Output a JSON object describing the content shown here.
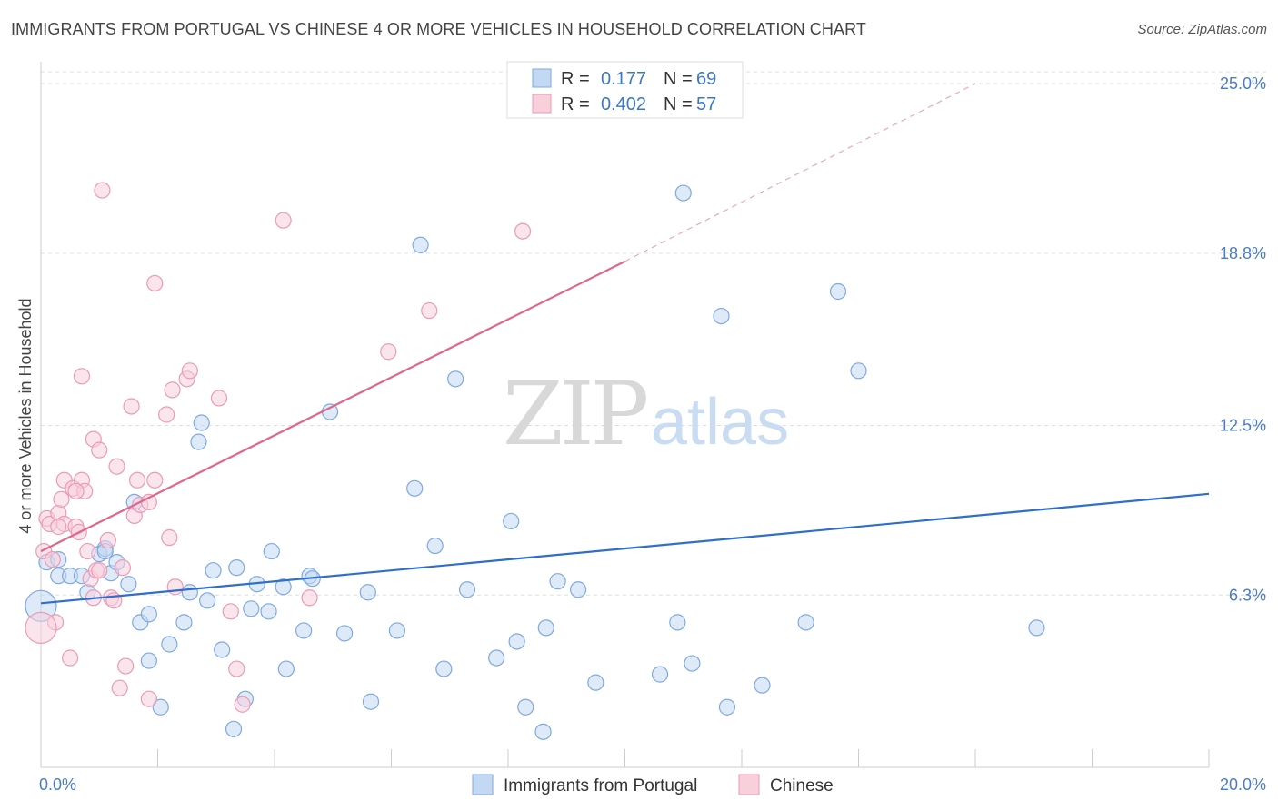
{
  "header": {
    "title": "IMMIGRANTS FROM PORTUGAL VS CHINESE 4 OR MORE VEHICLES IN HOUSEHOLD CORRELATION CHART",
    "source": "Source: ZipAtlas.com"
  },
  "watermark": {
    "zip": "ZIP",
    "atlas": "atlas"
  },
  "legend": {
    "r_label": "R =",
    "n_label": "N =",
    "rows": [
      {
        "r": "0.177",
        "n": "69",
        "color": "#a9c8ee"
      },
      {
        "r": "0.402",
        "n": "57",
        "color": "#f4b8cb"
      }
    ]
  },
  "chart_data": {
    "type": "scatter",
    "xlabel": "",
    "ylabel": "4 or more Vehicles in Household",
    "xlim": [
      0,
      20
    ],
    "ylim": [
      0,
      25.8
    ],
    "x_tick_labels": [
      "0.0%",
      "20.0%"
    ],
    "y_ticks": [
      6.3,
      12.5,
      18.8,
      25.0
    ],
    "y_tick_labels": [
      "6.3%",
      "12.5%",
      "18.8%",
      "25.0%"
    ],
    "grid": true,
    "legend_position": "bottom",
    "series": [
      {
        "name": "Immigrants from Portugal",
        "color": "#7fa9e0",
        "fill": "#c3d8f3",
        "trend": {
          "x": [
            0,
            20
          ],
          "y": [
            6.0,
            10.0
          ],
          "color": "#2f6fcc"
        },
        "points": [
          [
            0.1,
            7.5
          ],
          [
            0.3,
            7.6
          ],
          [
            0.3,
            7.0
          ],
          [
            0.5,
            7.0
          ],
          [
            0.7,
            7.0
          ],
          [
            0.8,
            6.4
          ],
          [
            1.0,
            7.8
          ],
          [
            1.1,
            8.0
          ],
          [
            1.2,
            7.1
          ],
          [
            1.3,
            7.5
          ],
          [
            1.5,
            6.7
          ],
          [
            1.6,
            9.7
          ],
          [
            1.7,
            5.3
          ],
          [
            1.85,
            5.6
          ],
          [
            1.85,
            3.9
          ],
          [
            2.05,
            2.2
          ],
          [
            2.2,
            4.5
          ],
          [
            2.45,
            5.3
          ],
          [
            2.55,
            6.4
          ],
          [
            2.7,
            11.9
          ],
          [
            2.75,
            12.6
          ],
          [
            2.85,
            6.1
          ],
          [
            2.95,
            7.2
          ],
          [
            3.1,
            4.3
          ],
          [
            3.3,
            1.4
          ],
          [
            3.35,
            7.3
          ],
          [
            3.5,
            2.5
          ],
          [
            3.6,
            5.8
          ],
          [
            3.7,
            6.7
          ],
          [
            3.9,
            5.7
          ],
          [
            3.95,
            7.9
          ],
          [
            4.15,
            6.6
          ],
          [
            4.2,
            3.6
          ],
          [
            4.5,
            5.0
          ],
          [
            4.6,
            7.0
          ],
          [
            4.65,
            6.9
          ],
          [
            4.95,
            13.0
          ],
          [
            5.2,
            4.9
          ],
          [
            5.6,
            6.4
          ],
          [
            5.65,
            2.4
          ],
          [
            6.1,
            5.0
          ],
          [
            6.4,
            10.2
          ],
          [
            6.5,
            19.1
          ],
          [
            6.75,
            8.1
          ],
          [
            6.9,
            3.6
          ],
          [
            7.1,
            14.2
          ],
          [
            7.3,
            6.5
          ],
          [
            7.8,
            4.0
          ],
          [
            8.05,
            9.0
          ],
          [
            8.15,
            4.6
          ],
          [
            8.3,
            2.2
          ],
          [
            8.6,
            1.3
          ],
          [
            8.65,
            5.1
          ],
          [
            8.85,
            6.8
          ],
          [
            9.2,
            6.5
          ],
          [
            9.5,
            3.1
          ],
          [
            10.6,
            3.4
          ],
          [
            10.9,
            5.3
          ],
          [
            11.0,
            21.0
          ],
          [
            11.15,
            3.8
          ],
          [
            11.65,
            16.5
          ],
          [
            11.75,
            2.2
          ],
          [
            12.35,
            3.0
          ],
          [
            13.1,
            5.3
          ],
          [
            13.65,
            17.4
          ],
          [
            14.0,
            14.5
          ],
          [
            17.05,
            5.1
          ],
          [
            0.0,
            5.9
          ],
          [
            1.1,
            7.9
          ]
        ]
      },
      {
        "name": "Chinese",
        "color": "#ec9ab5",
        "fill": "#f8d0dc",
        "trend": {
          "x": [
            0,
            10
          ],
          "y": [
            7.9,
            18.5
          ],
          "color": "#e0668e",
          "dash_to": [
            16,
            25.0
          ]
        },
        "points": [
          [
            0.05,
            7.9
          ],
          [
            0.1,
            9.1
          ],
          [
            0.15,
            8.9
          ],
          [
            0.2,
            7.6
          ],
          [
            0.25,
            5.3
          ],
          [
            0.3,
            9.3
          ],
          [
            0.35,
            9.8
          ],
          [
            0.4,
            8.9
          ],
          [
            0.4,
            10.5
          ],
          [
            0.5,
            4.0
          ],
          [
            0.55,
            10.2
          ],
          [
            0.6,
            8.8
          ],
          [
            0.65,
            8.6
          ],
          [
            0.7,
            10.5
          ],
          [
            0.7,
            14.3
          ],
          [
            0.75,
            10.1
          ],
          [
            0.8,
            7.9
          ],
          [
            0.85,
            6.9
          ],
          [
            0.9,
            6.2
          ],
          [
            0.9,
            12.0
          ],
          [
            0.95,
            7.2
          ],
          [
            1.0,
            11.6
          ],
          [
            1.15,
            8.3
          ],
          [
            1.2,
            6.2
          ],
          [
            1.25,
            6.1
          ],
          [
            1.3,
            11.0
          ],
          [
            1.35,
            2.9
          ],
          [
            1.4,
            7.3
          ],
          [
            1.45,
            3.7
          ],
          [
            1.55,
            13.2
          ],
          [
            1.6,
            9.2
          ],
          [
            1.65,
            10.5
          ],
          [
            1.7,
            9.6
          ],
          [
            1.85,
            9.7
          ],
          [
            1.85,
            2.5
          ],
          [
            1.95,
            17.7
          ],
          [
            2.15,
            12.9
          ],
          [
            2.2,
            8.4
          ],
          [
            2.3,
            6.6
          ],
          [
            2.5,
            14.2
          ],
          [
            2.55,
            14.5
          ],
          [
            2.25,
            13.8
          ],
          [
            3.05,
            13.5
          ],
          [
            3.25,
            5.7
          ],
          [
            3.35,
            3.6
          ],
          [
            3.45,
            2.3
          ],
          [
            4.15,
            20.0
          ],
          [
            4.6,
            6.2
          ],
          [
            5.95,
            15.2
          ],
          [
            6.65,
            16.7
          ],
          [
            8.25,
            19.6
          ],
          [
            1.05,
            21.1
          ],
          [
            0.0,
            5.1
          ],
          [
            1.95,
            10.5
          ],
          [
            0.3,
            8.8
          ],
          [
            1.0,
            7.2
          ],
          [
            0.6,
            10.1
          ]
        ]
      }
    ]
  }
}
